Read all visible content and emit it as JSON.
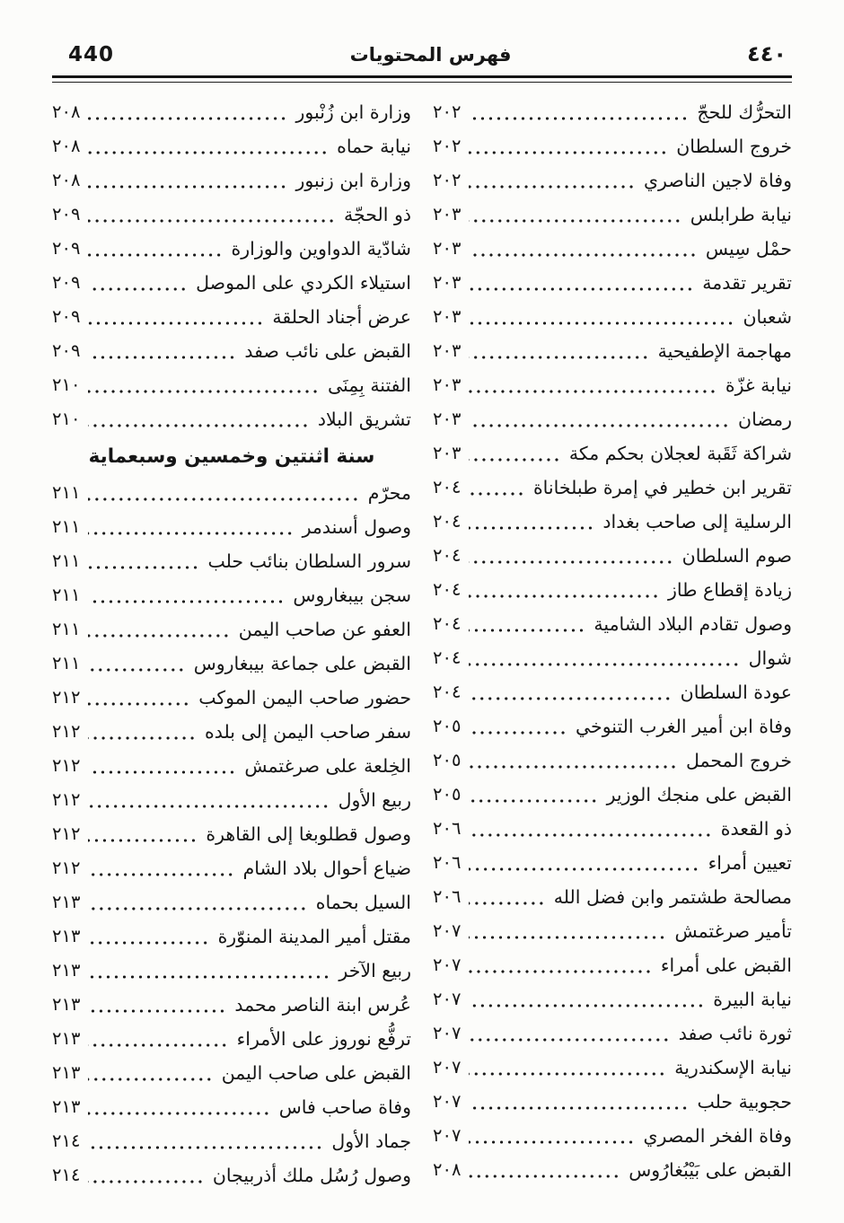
{
  "ink_color": "#161616",
  "paper_color": "#fcfcfa",
  "header": {
    "page_number_left": "440",
    "title": "فهرس المحتويات",
    "page_number_right": "٤٤٠"
  },
  "columns": {
    "right": {
      "sections": [
        {
          "entries": [
            {
              "title": "التحرُّك للحجّ",
              "page": "٢٠٢"
            },
            {
              "title": "خروج السلطان",
              "page": "٢٠٢"
            },
            {
              "title": "وفاة لاجين الناصري",
              "page": "٢٠٢"
            },
            {
              "title": "نيابة طرابلس",
              "page": "٢٠٣"
            },
            {
              "title": "حمْل سِيس",
              "page": "٢٠٣"
            },
            {
              "title": "تقرير تقدمة",
              "page": "٢٠٣"
            },
            {
              "title": "شعبان",
              "page": "٢٠٣"
            },
            {
              "title": "مهاجمة الإطفيحية",
              "page": "٢٠٣"
            },
            {
              "title": "نيابة غزّة",
              "page": "٢٠٣"
            },
            {
              "title": "رمضان",
              "page": "٢٠٣"
            },
            {
              "title": "شراكة ثَقَبة لعجلان بحكم مكة",
              "page": "٢٠٣"
            },
            {
              "title": "تقرير ابن خطير في إمرة طبلخاناة",
              "page": "٢٠٤"
            },
            {
              "title": "الرسلية إلى صاحب بغداد",
              "page": "٢٠٤"
            },
            {
              "title": "صوم السلطان",
              "page": "٢٠٤"
            },
            {
              "title": "زيادة إقطاع طاز",
              "page": "٢٠٤"
            },
            {
              "title": "وصول تقادم البلاد الشامية",
              "page": "٢٠٤"
            },
            {
              "title": "شوال",
              "page": "٢٠٤"
            },
            {
              "title": "عودة السلطان",
              "page": "٢٠٤"
            },
            {
              "title": "وفاة ابن أمير الغرب التنوخي",
              "page": "٢٠٥"
            },
            {
              "title": "خروج المحمل",
              "page": "٢٠٥"
            },
            {
              "title": "القبض على منجك الوزير",
              "page": "٢٠٥"
            },
            {
              "title": "ذو القعدة",
              "page": "٢٠٦"
            },
            {
              "title": "تعيين أمراء",
              "page": "٢٠٦"
            },
            {
              "title": "مصالحة طشتمر وابن فضل الله",
              "page": "٢٠٦"
            },
            {
              "title": "تأمير صرغتمش",
              "page": "٢٠٧"
            },
            {
              "title": "القبض على أمراء",
              "page": "٢٠٧"
            },
            {
              "title": "نيابة البيرة",
              "page": "٢٠٧"
            },
            {
              "title": "ثورة نائب صفد",
              "page": "٢٠٧"
            },
            {
              "title": "نيابة الإسكندرية",
              "page": "٢٠٧"
            },
            {
              "title": "حجوبية حلب",
              "page": "٢٠٧"
            },
            {
              "title": "وفاة الفخر المصري",
              "page": "٢٠٧"
            },
            {
              "title": "القبض على بَيْبُغارُوس",
              "page": "٢٠٨"
            }
          ]
        }
      ]
    },
    "left": {
      "sections": [
        {
          "entries": [
            {
              "title": "وزارة ابن زُنْبور",
              "page": "٢٠٨"
            },
            {
              "title": "نيابة حماه",
              "page": "٢٠٨"
            },
            {
              "title": "وزارة ابن زنبور",
              "page": "٢٠٨"
            },
            {
              "title": "ذو الحجّة",
              "page": "٢٠٩"
            },
            {
              "title": "شادّية الدواوين والوزارة",
              "page": "٢٠٩"
            },
            {
              "title": "استيلاء الكردي على الموصل",
              "page": "٢٠٩"
            },
            {
              "title": "عرض أجناد الحلقة",
              "page": "٢٠٩"
            },
            {
              "title": "القبض على نائب صفد",
              "page": "٢٠٩"
            },
            {
              "title": "الفتنة بِمِنَى",
              "page": "٢١٠"
            },
            {
              "title": "تشريق البلاد",
              "page": "٢١٠"
            }
          ]
        },
        {
          "heading": "سنة اثنتين وخمسين وسبعماية",
          "entries": [
            {
              "title": "محرّم",
              "page": "٢١١"
            },
            {
              "title": "وصول أسندمر",
              "page": "٢١١"
            },
            {
              "title": "سرور السلطان بنائب حلب",
              "page": "٢١١"
            },
            {
              "title": "سجن بيبغاروس",
              "page": "٢١١"
            },
            {
              "title": "العفو عن صاحب اليمن",
              "page": "٢١١"
            },
            {
              "title": "القبض على جماعة بيبغاروس",
              "page": "٢١١"
            },
            {
              "title": "حضور صاحب اليمن الموكب",
              "page": "٢١٢"
            },
            {
              "title": "سفر صاحب اليمن إلى بلده",
              "page": "٢١٢"
            },
            {
              "title": "الخِلعة على صرغتمش",
              "page": "٢١٢"
            },
            {
              "title": "ربيع الأول",
              "page": "٢١٢"
            },
            {
              "title": "وصول قطلوبغا إلى القاهرة",
              "page": "٢١٢"
            },
            {
              "title": "ضياع أحوال بلاد الشام",
              "page": "٢١٢"
            },
            {
              "title": "السيل بحماه",
              "page": "٢١٣"
            },
            {
              "title": "مقتل أمير المدينة المنوّرة",
              "page": "٢١٣"
            },
            {
              "title": "ربيع الآخر",
              "page": "٢١٣"
            },
            {
              "title": "عُرس ابنة الناصر محمد",
              "page": "٢١٣"
            },
            {
              "title": "ترفُّع نوروز على الأمراء",
              "page": "٢١٣"
            },
            {
              "title": "القبض على صاحب اليمن",
              "page": "٢١٣"
            },
            {
              "title": "وفاة صاحب فاس",
              "page": "٢١٣"
            },
            {
              "title": "جماد الأول",
              "page": "٢١٤"
            },
            {
              "title": "وصول رُسُل ملك أذربيجان",
              "page": "٢١٤"
            }
          ]
        }
      ]
    }
  }
}
